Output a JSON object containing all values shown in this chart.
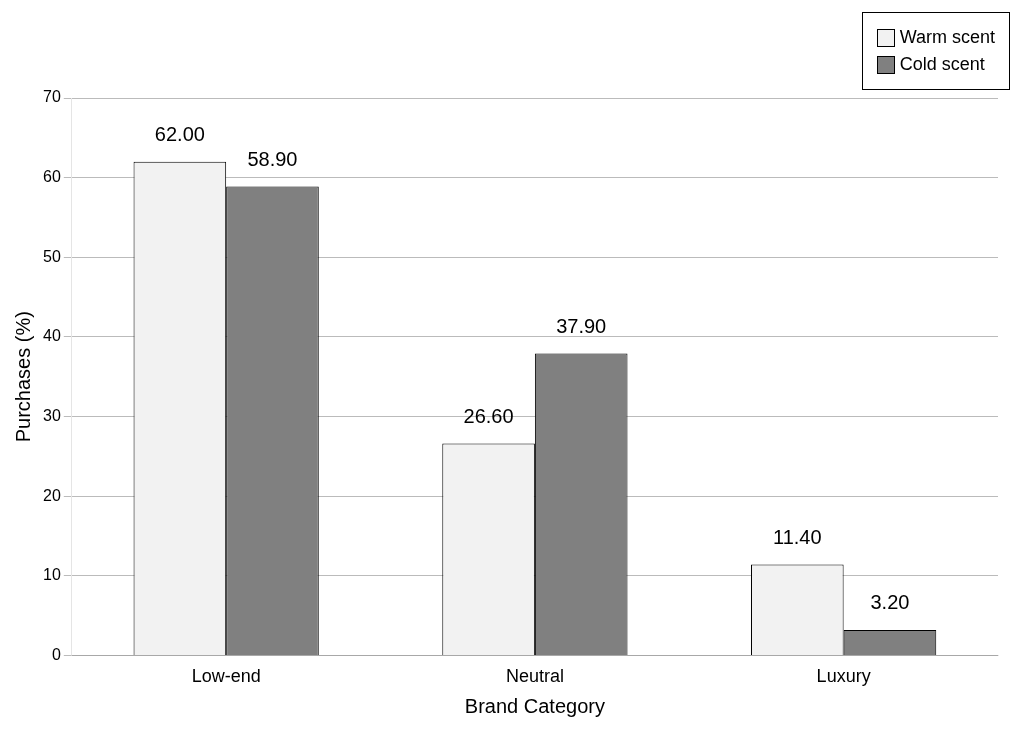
{
  "chart_data": {
    "type": "bar",
    "xlabel": "Brand Category",
    "ylabel": "Purchases (%)",
    "categories": [
      "Low-end",
      "Neutral",
      "Luxury"
    ],
    "series": [
      {
        "name": "Warm scent",
        "color": "#f2f2f2",
        "values": [
          62.0,
          26.6,
          11.4
        ],
        "value_labels": [
          "62.00",
          "26.60",
          "11.40"
        ]
      },
      {
        "name": "Cold scent",
        "color": "#808080",
        "values": [
          58.9,
          37.9,
          3.2
        ],
        "value_labels": [
          "58.90",
          "37.90",
          "3.20"
        ]
      }
    ],
    "ylim": [
      0,
      70
    ],
    "yticks": [
      0,
      10,
      20,
      30,
      40,
      50,
      60,
      70
    ],
    "grid": "y",
    "legend": "top right"
  }
}
